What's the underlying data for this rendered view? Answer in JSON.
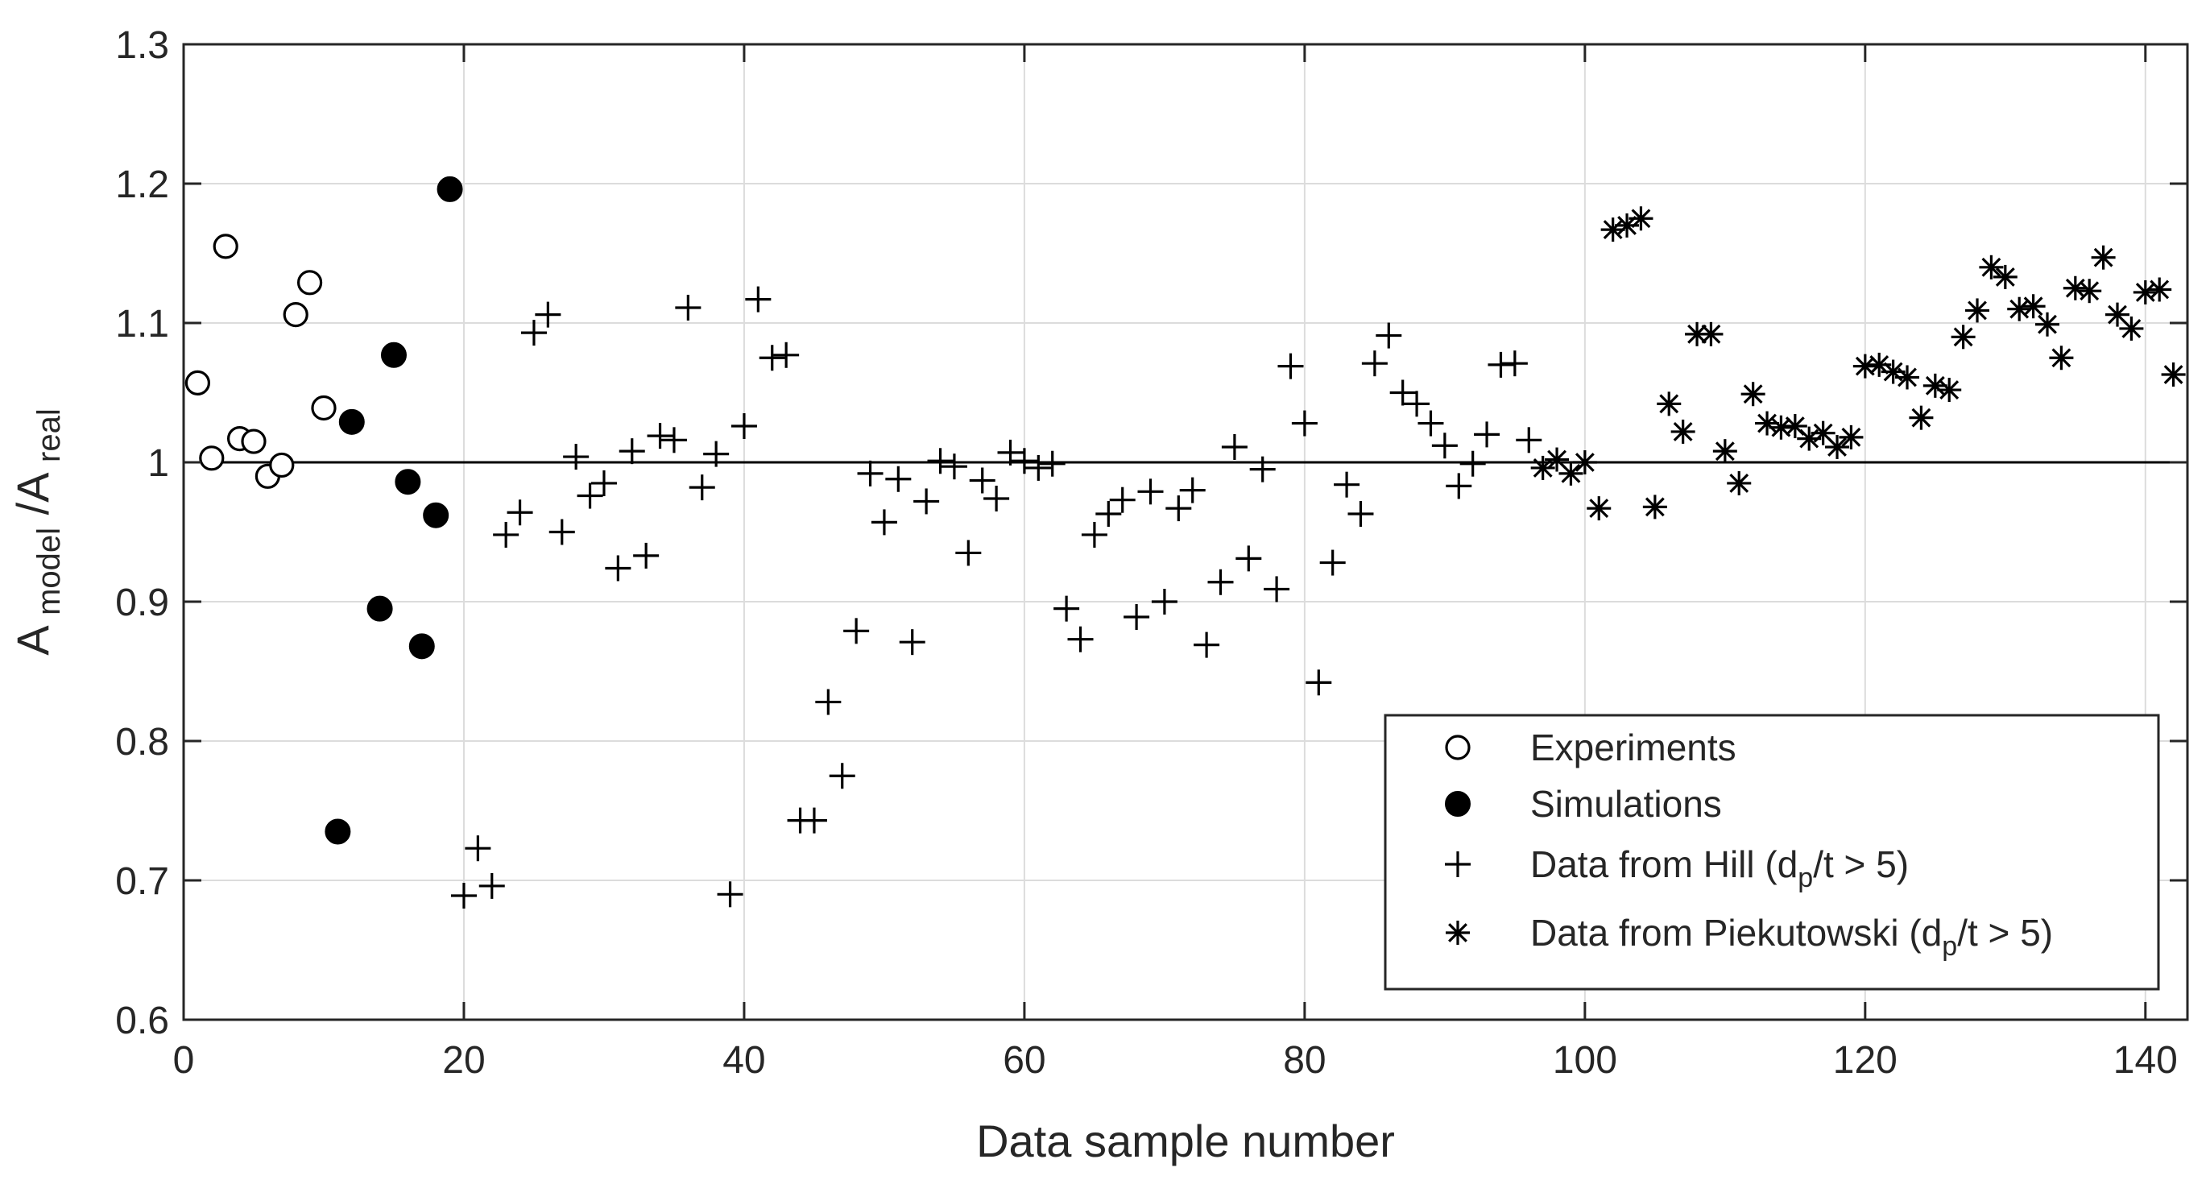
{
  "chart_data": {
    "type": "scatter",
    "title": "",
    "xlabel": "Data sample number",
    "ylabel": {
      "main1": "A",
      "sub1": "model",
      "sep": "/A",
      "sub2": "real"
    },
    "xlim": [
      0,
      143
    ],
    "ylim": [
      0.6,
      1.3
    ],
    "grid": true,
    "xticks": [
      0,
      20,
      40,
      60,
      80,
      100,
      120,
      140
    ],
    "yticks": [
      0.6,
      0.7,
      0.8,
      0.9,
      1.0,
      1.1,
      1.2,
      1.3
    ],
    "xtick_labels": [
      "0",
      "20",
      "40",
      "60",
      "80",
      "100",
      "120",
      "140"
    ],
    "ytick_labels": [
      "0.6",
      "0.7",
      "0.8",
      "0.9",
      "1",
      "1.1",
      "1.2",
      "1.3"
    ],
    "reference_line": {
      "y": 1.0
    },
    "legend_position": "bottom-right",
    "series": [
      {
        "name": "Experiments",
        "marker": "open-circle",
        "points": [
          [
            1,
            1.057
          ],
          [
            2,
            1.003
          ],
          [
            3,
            1.155
          ],
          [
            4,
            1.017
          ],
          [
            5,
            1.015
          ],
          [
            6,
            0.99
          ],
          [
            7,
            0.998
          ],
          [
            8,
            1.106
          ],
          [
            9,
            1.129
          ],
          [
            10,
            1.039
          ]
        ]
      },
      {
        "name": "Simulations",
        "marker": "filled-circle",
        "points": [
          [
            11,
            0.735
          ],
          [
            12,
            1.029
          ],
          [
            14,
            0.895
          ],
          [
            15,
            1.077
          ],
          [
            16,
            0.986
          ],
          [
            17,
            0.868
          ],
          [
            18,
            0.962
          ],
          [
            19,
            1.196
          ]
        ]
      },
      {
        "name": "Data from Hill (d_p/t > 5)",
        "legend": {
          "pre": "Data from Hill (d",
          "sub": "p",
          "post": "/t > 5)"
        },
        "marker": "plus",
        "points": [
          [
            20,
            0.689
          ],
          [
            21,
            0.723
          ],
          [
            22,
            0.696
          ],
          [
            23,
            0.948
          ],
          [
            24,
            0.964
          ],
          [
            25,
            1.093
          ],
          [
            26,
            1.106
          ],
          [
            27,
            0.95
          ],
          [
            28,
            1.004
          ],
          [
            29,
            0.976
          ],
          [
            30,
            0.985
          ],
          [
            31,
            0.924
          ],
          [
            32,
            1.008
          ],
          [
            33,
            0.933
          ],
          [
            34,
            1.019
          ],
          [
            35,
            1.016
          ],
          [
            36,
            1.111
          ],
          [
            37,
            0.982
          ],
          [
            38,
            1.006
          ],
          [
            39,
            0.69
          ],
          [
            40,
            1.026
          ],
          [
            41,
            1.117
          ],
          [
            42,
            1.075
          ],
          [
            43,
            1.077
          ],
          [
            44,
            0.743
          ],
          [
            45,
            0.743
          ],
          [
            46,
            0.828
          ],
          [
            47,
            0.775
          ],
          [
            48,
            0.879
          ],
          [
            49,
            0.992
          ],
          [
            50,
            0.957
          ],
          [
            51,
            0.988
          ],
          [
            52,
            0.871
          ],
          [
            53,
            0.972
          ],
          [
            54,
            1.001
          ],
          [
            55,
            0.997
          ],
          [
            56,
            0.935
          ],
          [
            57,
            0.987
          ],
          [
            58,
            0.974
          ],
          [
            59,
            1.007
          ],
          [
            60,
            1.001
          ],
          [
            61,
            0.996
          ],
          [
            62,
            0.999
          ],
          [
            63,
            0.895
          ],
          [
            64,
            0.873
          ],
          [
            65,
            0.948
          ],
          [
            66,
            0.963
          ],
          [
            67,
            0.973
          ],
          [
            68,
            0.889
          ],
          [
            69,
            0.979
          ],
          [
            70,
            0.9
          ],
          [
            71,
            0.967
          ],
          [
            72,
            0.98
          ],
          [
            73,
            0.869
          ],
          [
            74,
            0.914
          ],
          [
            75,
            1.011
          ],
          [
            76,
            0.931
          ],
          [
            77,
            0.995
          ],
          [
            78,
            0.909
          ],
          [
            79,
            1.069
          ],
          [
            80,
            1.028
          ],
          [
            81,
            0.842
          ],
          [
            82,
            0.928
          ],
          [
            83,
            0.984
          ],
          [
            84,
            0.963
          ],
          [
            85,
            1.071
          ],
          [
            86,
            1.091
          ],
          [
            87,
            1.05
          ],
          [
            88,
            1.042
          ],
          [
            89,
            1.028
          ],
          [
            90,
            1.012
          ],
          [
            91,
            0.983
          ],
          [
            92,
            0.999
          ],
          [
            93,
            1.02
          ],
          [
            94,
            1.07
          ],
          [
            95,
            1.071
          ],
          [
            96,
            1.016
          ]
        ]
      },
      {
        "name": "Data from Piekutowski (d_p/t > 5)",
        "legend": {
          "pre": "Data from Piekutowski (d",
          "sub": "p",
          "post": "/t > 5)"
        },
        "marker": "asterisk",
        "points": [
          [
            97,
            0.996
          ],
          [
            98,
            1.002
          ],
          [
            99,
            0.992
          ],
          [
            100,
            1.0
          ],
          [
            101,
            0.967
          ],
          [
            102,
            1.167
          ],
          [
            103,
            1.17
          ],
          [
            104,
            1.175
          ],
          [
            105,
            0.968
          ],
          [
            106,
            1.042
          ],
          [
            107,
            1.022
          ],
          [
            108,
            1.092
          ],
          [
            109,
            1.092
          ],
          [
            110,
            1.008
          ],
          [
            111,
            0.985
          ],
          [
            112,
            1.049
          ],
          [
            113,
            1.028
          ],
          [
            114,
            1.025
          ],
          [
            115,
            1.026
          ],
          [
            116,
            1.017
          ],
          [
            117,
            1.021
          ],
          [
            118,
            1.011
          ],
          [
            119,
            1.018
          ],
          [
            120,
            1.069
          ],
          [
            121,
            1.07
          ],
          [
            122,
            1.065
          ],
          [
            123,
            1.061
          ],
          [
            124,
            1.032
          ],
          [
            125,
            1.055
          ],
          [
            126,
            1.052
          ],
          [
            127,
            1.09
          ],
          [
            128,
            1.109
          ],
          [
            129,
            1.14
          ],
          [
            130,
            1.133
          ],
          [
            131,
            1.11
          ],
          [
            132,
            1.112
          ],
          [
            133,
            1.099
          ],
          [
            134,
            1.075
          ],
          [
            135,
            1.125
          ],
          [
            136,
            1.123
          ],
          [
            137,
            1.147
          ],
          [
            138,
            1.106
          ],
          [
            139,
            1.096
          ],
          [
            140,
            1.122
          ],
          [
            141,
            1.124
          ],
          [
            142,
            1.063
          ]
        ]
      }
    ]
  }
}
